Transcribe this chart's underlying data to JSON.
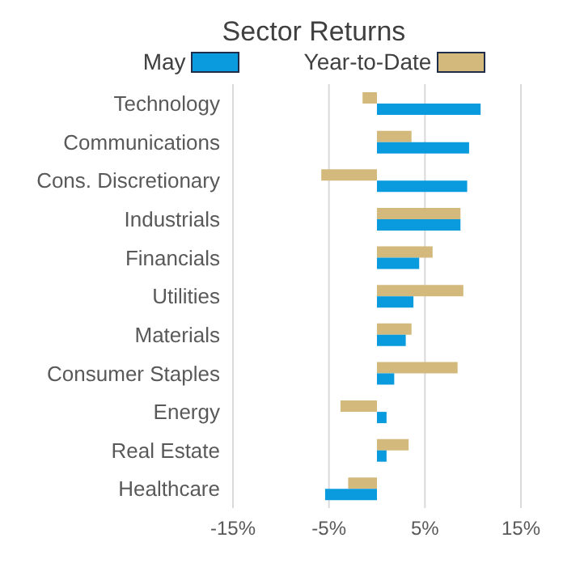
{
  "chart_data": {
    "type": "bar",
    "orientation": "horizontal",
    "title": "Sector Returns",
    "categories": [
      "Technology",
      "Communications",
      "Cons. Discretionary",
      "Industrials",
      "Financials",
      "Utilities",
      "Materials",
      "Consumer Staples",
      "Energy",
      "Real Estate",
      "Healthcare"
    ],
    "series": [
      {
        "name": "May",
        "color": "#0a9ade",
        "values": [
          10.8,
          9.6,
          9.4,
          8.7,
          4.4,
          3.8,
          3,
          1.8,
          1,
          1,
          -5.4
        ]
      },
      {
        "name": "Year-to-Date",
        "color": "#d4b97c",
        "values": [
          -1.5,
          3.6,
          -5.8,
          8.7,
          5.8,
          9,
          3.6,
          8.4,
          -3.8,
          3.3,
          -3
        ]
      }
    ],
    "xlim": [
      -15,
      15
    ],
    "xticks": [
      {
        "value": -15,
        "label": "-15%"
      },
      {
        "value": -5,
        "label": "-5%"
      },
      {
        "value": 5,
        "label": "5%"
      },
      {
        "value": 15,
        "label": "15%"
      }
    ],
    "grid": "x",
    "legend": "top"
  }
}
